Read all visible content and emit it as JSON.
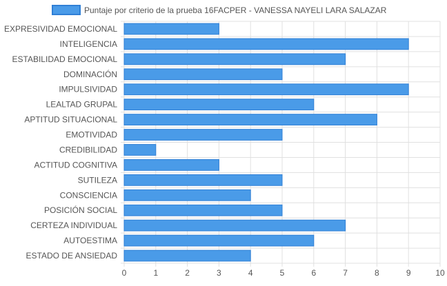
{
  "chart_data": {
    "type": "bar",
    "orientation": "horizontal",
    "legend": {
      "position": "top",
      "entries": [
        "Puntaje por criterio de la prueba 16FACPER - VANESSA NAYELI LARA SALAZAR"
      ]
    },
    "series": [
      {
        "name": "Puntaje por criterio de la prueba 16FACPER - VANESSA NAYELI LARA SALAZAR",
        "color": "#4a9be8",
        "border_color": "#2f7fd6",
        "values": [
          3,
          9,
          7,
          5,
          9,
          6,
          8,
          5,
          1,
          3,
          5,
          4,
          5,
          7,
          6,
          4
        ]
      }
    ],
    "categories": [
      "EXPRESIVIDAD EMOCIONAL",
      "INTELIGENCIA",
      "ESTABILIDAD EMOCIONAL",
      "DOMINACIÓN",
      "IMPULSIVIDAD",
      "LEALTAD GRUPAL",
      "APTITUD SITUACIONAL",
      "EMOTIVIDAD",
      "CREDIBILIDAD",
      "ACTITUD COGNITIVA",
      "SUTILEZA",
      "CONSCIENCIA",
      "POSICIÓN SOCIAL",
      "CERTEZA INDIVIDUAL",
      "AUTOESTIMA",
      "ESTADO DE ANSIEDAD"
    ],
    "xlim": [
      0,
      10
    ],
    "x_ticks": [
      "0",
      "1",
      "2",
      "3",
      "4",
      "5",
      "6",
      "7",
      "8",
      "9",
      "10"
    ],
    "grid": true,
    "colors": {
      "grid": "#e0e0e0",
      "text": "#555555"
    }
  }
}
